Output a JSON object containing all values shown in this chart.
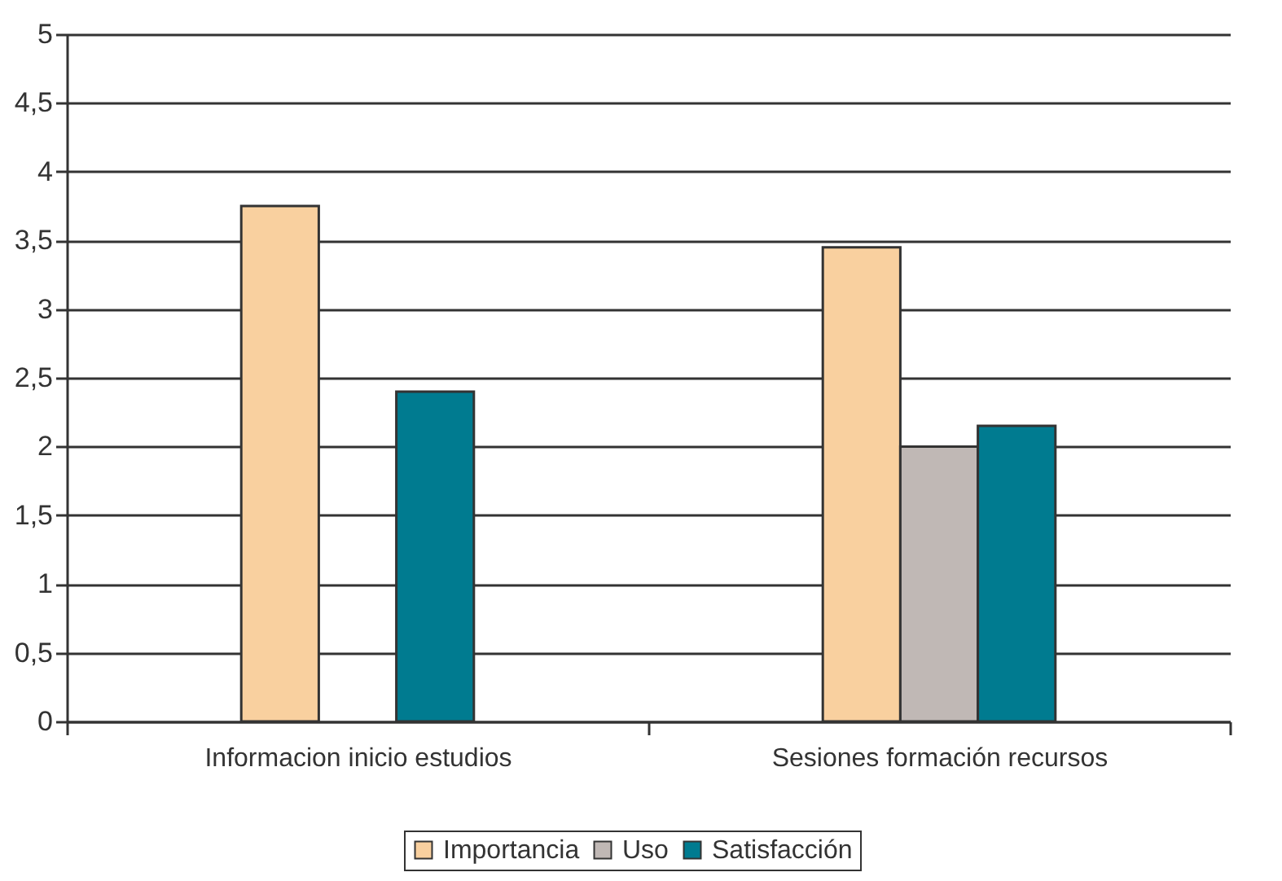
{
  "chart_data": {
    "type": "bar",
    "categories": [
      "Informacion inicio estudios",
      "Sesiones formación recursos"
    ],
    "series": [
      {
        "name": "Importancia",
        "color": "#f9d09f",
        "values": [
          3.75,
          3.45
        ]
      },
      {
        "name": "Uso",
        "color": "#c0b8b5",
        "values": [
          null,
          2.0
        ]
      },
      {
        "name": "Satisfacción",
        "color": "#007b90",
        "values": [
          2.4,
          2.15
        ]
      }
    ],
    "ylim": [
      0,
      5
    ],
    "yticks": [
      0,
      {
        "value": 0.5,
        "label": "0,5"
      },
      1,
      {
        "value": 1.5,
        "label": "1,5"
      },
      2,
      {
        "value": 2.5,
        "label": "2,5"
      },
      3,
      {
        "value": 3.5,
        "label": "3,5"
      },
      4,
      {
        "value": 4.5,
        "label": "4,5"
      },
      5
    ],
    "grid": "y",
    "legend": "bottom"
  }
}
